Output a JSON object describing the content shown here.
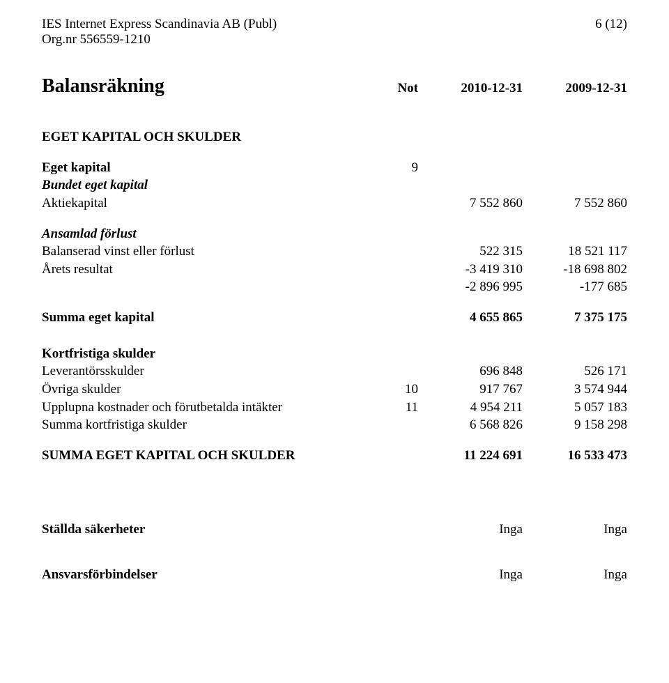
{
  "header": {
    "company_line1": "IES Internet Express Scandinavia AB (Publ)",
    "company_line2": "Org.nr 556559-1210",
    "page_num": "6 (12)"
  },
  "title": "Balansräkning",
  "col_headers": {
    "not": "Not",
    "date1": "2010-12-31",
    "date2": "2009-12-31"
  },
  "section_heading": "EGET KAPITAL OCH SKULDER",
  "eget_kapital": {
    "heading": "Eget kapital",
    "note": "9",
    "bundet_heading": "Bundet eget kapital",
    "aktiekapital": {
      "label": "Aktiekapital",
      "v1": "7 552 860",
      "v2": "7 552 860"
    },
    "ansamlad_heading": "Ansamlad förlust",
    "balanserad": {
      "label": "Balanserad vinst eller förlust",
      "v1": "522 315",
      "v2": "18 521 117"
    },
    "arets": {
      "label": "Årets resultat",
      "v1": "-3 419 310",
      "v2": "-18 698 802"
    },
    "subtotal": {
      "v1": "-2 896 995",
      "v2": "-177 685"
    }
  },
  "summa_eget": {
    "label": "Summa eget kapital",
    "v1": "4 655 865",
    "v2": "7 375 175"
  },
  "kortfristiga": {
    "heading": "Kortfristiga skulder",
    "leverantor": {
      "label": "Leverantörsskulder",
      "v1": "696 848",
      "v2": "526 171"
    },
    "ovriga": {
      "label": "Övriga skulder",
      "not": "10",
      "v1": "917 767",
      "v2": "3 574 944"
    },
    "upplupna": {
      "label": "Upplupna kostnader och förutbetalda intäkter",
      "not": "11",
      "v1": "4 954 211",
      "v2": "5 057 183"
    },
    "summa": {
      "label": "Summa kortfristiga skulder",
      "v1": "6 568 826",
      "v2": "9 158 298"
    }
  },
  "summa_skulder": {
    "label": "SUMMA EGET KAPITAL OCH SKULDER",
    "v1": "11 224 691",
    "v2": "16 533 473"
  },
  "stallda": {
    "label": "Ställda säkerheter",
    "v1": "Inga",
    "v2": "Inga"
  },
  "ansvar": {
    "label": "Ansvarsförbindelser",
    "v1": "Inga",
    "v2": "Inga"
  }
}
